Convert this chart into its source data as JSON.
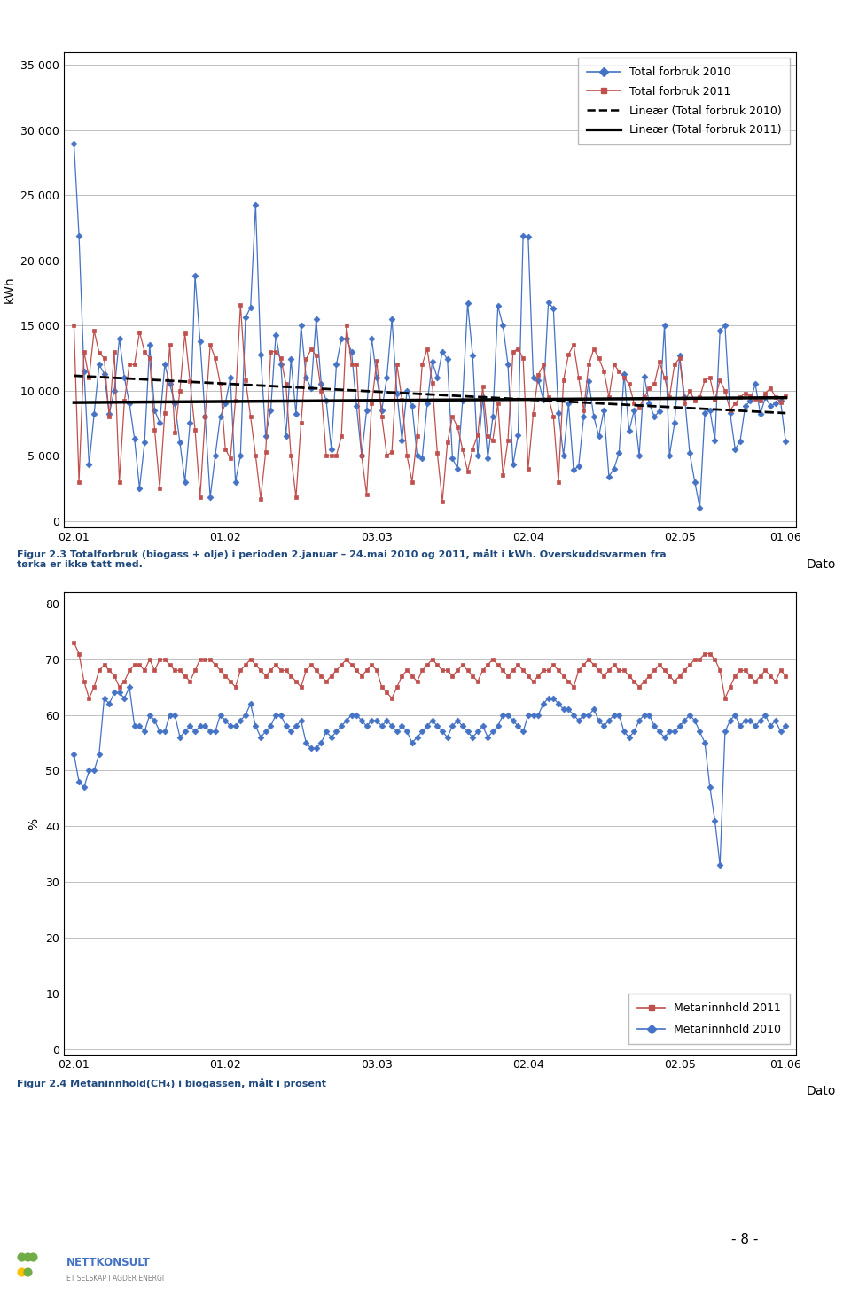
{
  "chart1": {
    "ylabel": "kWh",
    "xlabel": "Dato",
    "yticks": [
      0,
      5000,
      10000,
      15000,
      20000,
      25000,
      30000,
      35000
    ],
    "ylim": [
      -500,
      36000
    ],
    "xtick_labels": [
      "02.01",
      "01.02",
      "03.03",
      "02.04",
      "02.05",
      "01.06"
    ],
    "color_2010": "#4472C4",
    "color_2011": "#C0504D",
    "legend": [
      "Total forbruk 2010",
      "Total forbruk 2011",
      "Lineær (Total forbruk 2010)",
      "Lineær (Total forbruk 2011)"
    ],
    "caption": "Figur 2.3 Totalforbruk (biogass + olje) i perioden 2.januar – 24.mai 2010 og 2011, målt i kWh. Overskuddsvarmen fra\ntørka er ikke tatt med."
  },
  "chart2": {
    "ylabel": "%",
    "xlabel": "Dato",
    "yticks": [
      0,
      10,
      20,
      30,
      40,
      50,
      60,
      70,
      80
    ],
    "ylim": [
      -1,
      82
    ],
    "xtick_labels": [
      "02.01",
      "01.02",
      "03.03",
      "02.04",
      "02.05",
      "01.06"
    ],
    "color_2010": "#4472C4",
    "color_2011": "#C0504D",
    "legend": [
      "Metaninnhold 2011",
      "Metaninnhold 2010"
    ],
    "caption": "Figur 2.4 Metaninnhold(CH₄) i biogassen, målt i prosent"
  },
  "page_number": "- 8 -",
  "background_color": "#FFFFFF",
  "grid_color": "#C0C0C0",
  "y2010": [
    29000,
    21900,
    11500,
    4300,
    8200,
    12000,
    11300,
    8200,
    10000,
    14000,
    11000,
    9000,
    6300,
    2500,
    6000,
    13500,
    8500,
    7500,
    12000,
    10500,
    9000,
    6000,
    3000,
    7500,
    18800,
    13800,
    8000,
    1800,
    5000,
    8000,
    9000,
    11000,
    3000,
    5000,
    15600,
    16400,
    24300,
    12800,
    6500,
    8500,
    14300,
    12000,
    6500,
    12400,
    8200,
    15000,
    11000,
    10200,
    15500,
    10500,
    9200,
    5500,
    12000,
    14000,
    14000,
    13000,
    8800,
    5000,
    8500,
    14000,
    11000,
    8500,
    11000,
    15500,
    9800,
    6200,
    10000,
    8800,
    5000,
    4800,
    9000,
    12200,
    11000,
    13000,
    12400,
    4800,
    4000,
    9200,
    16700,
    12700,
    5000,
    9500,
    4800,
    8000,
    16500,
    15000,
    12000,
    4300,
    6600,
    21900,
    21800,
    11000,
    10800,
    9300,
    16800,
    16300,
    8300,
    5000,
    9000,
    3900,
    4200,
    8000,
    10700,
    8000,
    6500,
    8500,
    3400,
    4000,
    5200,
    11300,
    6900,
    8500,
    5000,
    11100,
    9000,
    8000,
    8400,
    15000,
    5000,
    7500,
    12700,
    9500,
    5200,
    3000,
    1000,
    8300,
    8500,
    6200,
    14600,
    15000,
    8300,
    5500,
    6100,
    8800,
    9200,
    10500,
    8200,
    9500,
    8800,
    9000,
    9200,
    6100
  ],
  "y2011": [
    15000,
    3000,
    13000,
    11000,
    14600,
    12900,
    12500,
    8000,
    13000,
    3000,
    9200,
    12000,
    12000,
    14500,
    13000,
    12500,
    7000,
    2500,
    8300,
    13500,
    6800,
    10000,
    14400,
    10700,
    7000,
    1800,
    8000,
    13500,
    12500,
    10500,
    5500,
    4800,
    9200,
    16600,
    10800,
    8000,
    5000,
    1700,
    5300,
    13000,
    13000,
    12500,
    10500,
    5000,
    1800,
    7500,
    12400,
    13200,
    12700,
    10000,
    5000,
    5000,
    5000,
    6500,
    15000,
    12000,
    12000,
    5000,
    2000,
    9000,
    12300,
    8000,
    5000,
    5300,
    12000,
    9300,
    5000,
    3000,
    6500,
    12000,
    13200,
    10600,
    5200,
    1500,
    6000,
    8000,
    7200,
    5500,
    3800,
    5500,
    6600,
    10300,
    6500,
    6200,
    9000,
    3500,
    6200,
    13000,
    13200,
    12500,
    4000,
    8200,
    11200,
    12000,
    9500,
    8000,
    3000,
    10800,
    12800,
    13500,
    11000,
    8500,
    12000,
    13200,
    12500,
    11500,
    9500,
    12000,
    11500,
    11000,
    10500,
    9000,
    8700,
    9500,
    10200,
    10500,
    12200,
    11000,
    9500,
    12000,
    12500,
    9000,
    10000,
    9200,
    9500,
    10800,
    11000,
    9300,
    10800,
    10000,
    8500,
    9000,
    9500,
    9800,
    9600,
    9400,
    9200,
    9800,
    10200,
    9500,
    9100,
    9600
  ],
  "meth2010": [
    53,
    48,
    47,
    50,
    50,
    53,
    63,
    62,
    64,
    64,
    63,
    65,
    58,
    58,
    57,
    60,
    59,
    57,
    57,
    60,
    60,
    56,
    57,
    58,
    57,
    58,
    58,
    57,
    57,
    60,
    59,
    58,
    58,
    59,
    60,
    62,
    58,
    56,
    57,
    58,
    60,
    60,
    58,
    57,
    58,
    59,
    55,
    54,
    54,
    55,
    57,
    56,
    57,
    58,
    59,
    60,
    60,
    59,
    58,
    59,
    59,
    58,
    59,
    58,
    57,
    58,
    57,
    55,
    56,
    57,
    58,
    59,
    58,
    57,
    56,
    58,
    59,
    58,
    57,
    56,
    57,
    58,
    56,
    57,
    58,
    60,
    60,
    59,
    58,
    57,
    60,
    60,
    60,
    62,
    63,
    63,
    62,
    61,
    61,
    60,
    59,
    60,
    60,
    61,
    59,
    58,
    59,
    60,
    60,
    57,
    56,
    57,
    59,
    60,
    60,
    58,
    57,
    56,
    57,
    57,
    58,
    59,
    60,
    59,
    57,
    55,
    47,
    41,
    33,
    57,
    59,
    60,
    58,
    59,
    59,
    58,
    59,
    60,
    58,
    59,
    57,
    58
  ],
  "meth2011": [
    73,
    71,
    66,
    63,
    65,
    68,
    69,
    68,
    67,
    65,
    66,
    68,
    69,
    69,
    68,
    70,
    68,
    70,
    70,
    69,
    68,
    68,
    67,
    66,
    68,
    70,
    70,
    70,
    69,
    68,
    67,
    66,
    65,
    68,
    69,
    70,
    69,
    68,
    67,
    68,
    69,
    68,
    68,
    67,
    66,
    65,
    68,
    69,
    68,
    67,
    66,
    67,
    68,
    69,
    70,
    69,
    68,
    67,
    68,
    69,
    68,
    65,
    64,
    63,
    65,
    67,
    68,
    67,
    66,
    68,
    69,
    70,
    69,
    68,
    68,
    67,
    68,
    69,
    68,
    67,
    66,
    68,
    69,
    70,
    69,
    68,
    67,
    68,
    69,
    68,
    67,
    66,
    67,
    68,
    68,
    69,
    68,
    67,
    66,
    65,
    68,
    69,
    70,
    69,
    68,
    67,
    68,
    69,
    68,
    68,
    67,
    66,
    65,
    66,
    67,
    68,
    69,
    68,
    67,
    66,
    67,
    68,
    69,
    70,
    70,
    71,
    71,
    70,
    68,
    63,
    65,
    67,
    68,
    68,
    67,
    66,
    67,
    68,
    67,
    66,
    68,
    67
  ]
}
